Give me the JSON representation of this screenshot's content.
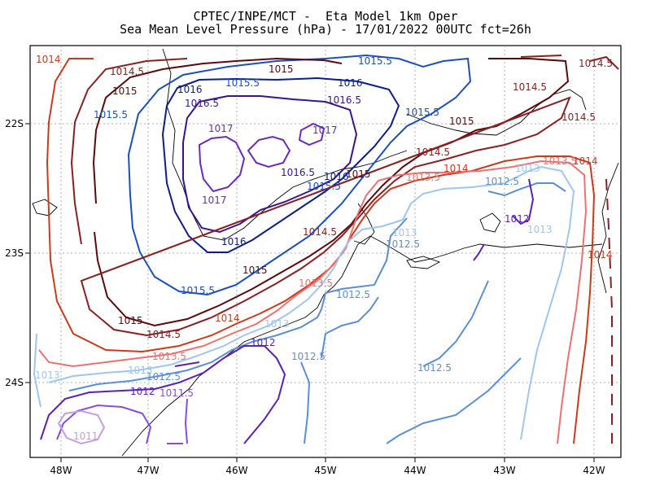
{
  "title": {
    "line1": "CPTEC/INPE/MCT -  Eta Model 1km Oper",
    "line2": "Sea Mean Level Pressure (hPa) - 17/01/2022 00UTC fct=26h"
  },
  "axes": {
    "lon_ticks": [
      "48W",
      "47W",
      "46W",
      "45W",
      "44W",
      "43W",
      "42W"
    ],
    "lat_ticks": [
      "22S",
      "23S",
      "24S"
    ]
  },
  "levels": {
    "l1011": {
      "value": "1011",
      "color": "#c79be6"
    },
    "l1011_5": {
      "value": "1011.5",
      "color": "#8a4be0"
    },
    "l1012": {
      "value": "1012",
      "color": "#5c1fb8"
    },
    "l1012_5": {
      "value": "1012.5",
      "color": "#5a8fd6"
    },
    "l1013": {
      "value": "1013",
      "color": "#9fc6ef"
    },
    "l1013_5": {
      "value": "1013.5",
      "color": "#f07070"
    },
    "l1014": {
      "value": "1014",
      "color": "#cc3a1a"
    },
    "l1014_5": {
      "value": "1014.5",
      "color": "#8a2020"
    },
    "l1015": {
      "value": "1015",
      "color": "#5a0a0a"
    },
    "l1015_5": {
      "value": "1015.5",
      "color": "#1a4fbf"
    },
    "l1016": {
      "value": "1016",
      "color": "#0a1f8a"
    },
    "l1016_5": {
      "value": "1016.5",
      "color": "#3a148a"
    },
    "l1017": {
      "value": "1017",
      "color": "#6a2ac0"
    }
  }
}
